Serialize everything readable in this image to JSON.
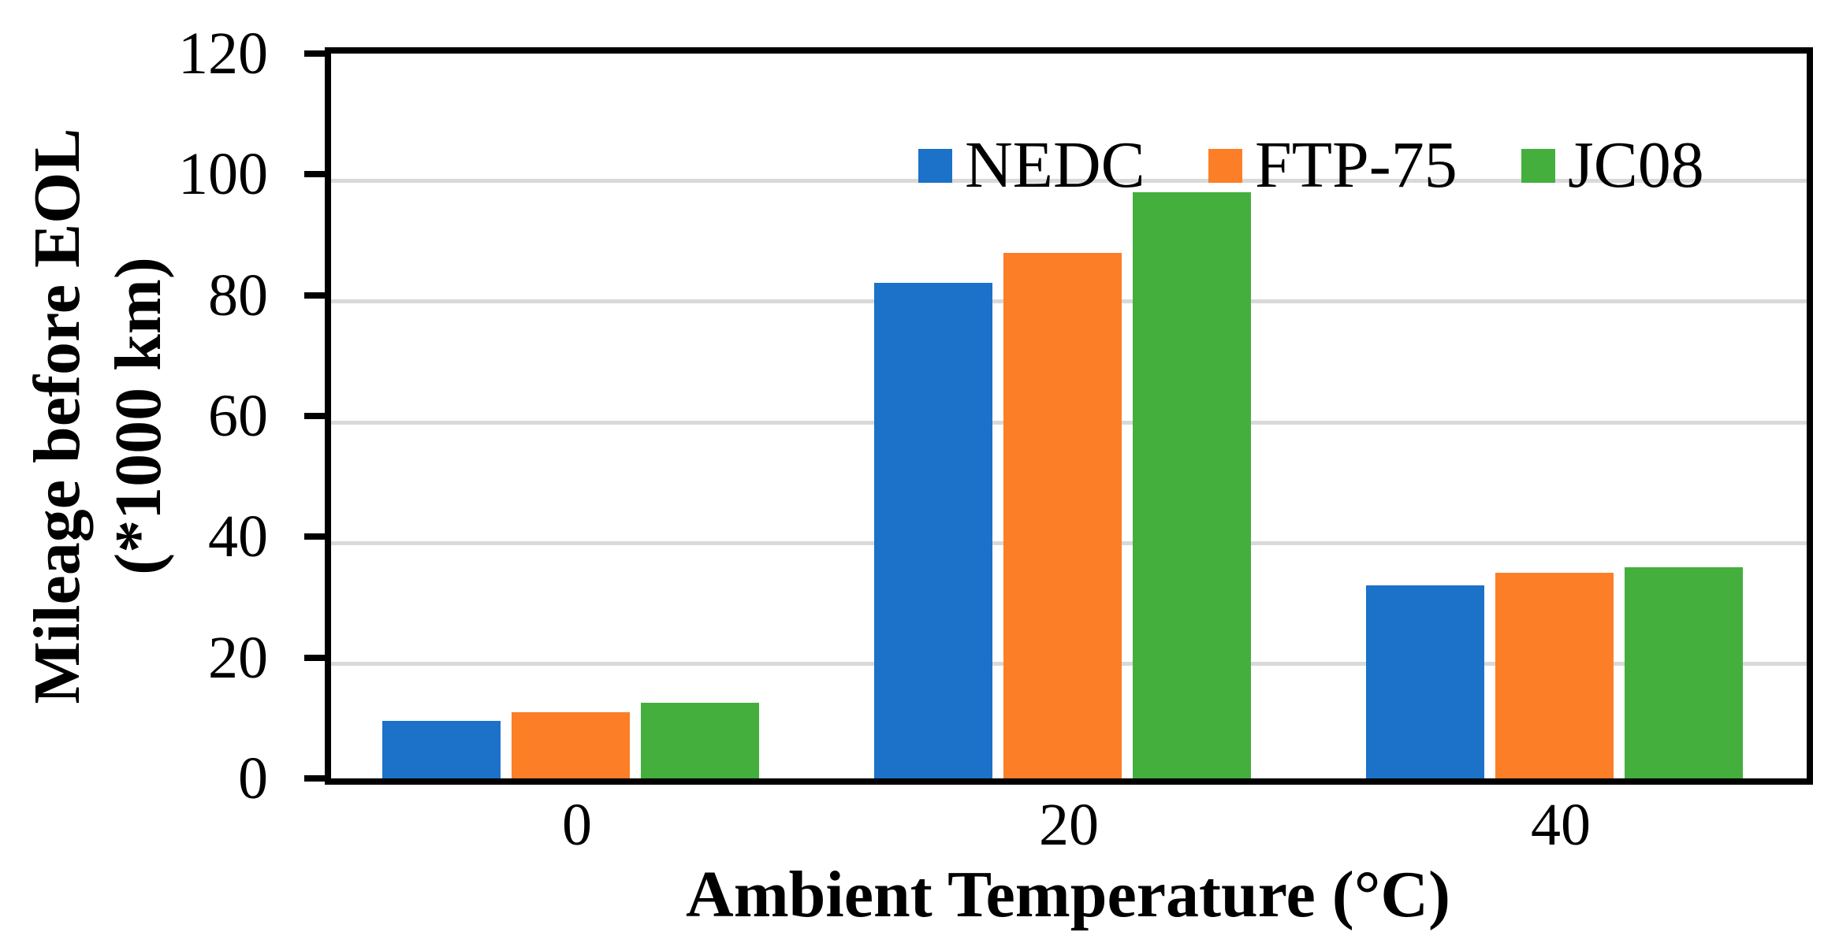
{
  "chart_data": {
    "type": "bar",
    "title": "",
    "categories": [
      "0",
      "20",
      "40"
    ],
    "series": [
      {
        "name": "NEDC",
        "color": "#1B72C8",
        "values": [
          9.5,
          82,
          32
        ]
      },
      {
        "name": "FTP-75",
        "color": "#FC7E26",
        "values": [
          11,
          87,
          34
        ]
      },
      {
        "name": "JC08",
        "color": "#44AF3D",
        "values": [
          12.5,
          97,
          35
        ]
      }
    ],
    "xlabel": "Ambient Temperature  (°C)",
    "ylabel_line1": "Mileage before EOL",
    "ylabel_line2": "(*1000 km)",
    "ylim": [
      0,
      120
    ],
    "ytick_step": 20,
    "yticks": [
      "0",
      "20",
      "40",
      "60",
      "80",
      "100",
      "120"
    ],
    "grid": "horizontal-only",
    "gridline_color": "#D9D9D9",
    "axis_color": "#000000",
    "legend_position": "top-inside-horizontal",
    "legend_entries": [
      "NEDC",
      "FTP-75",
      "JC08"
    ]
  }
}
